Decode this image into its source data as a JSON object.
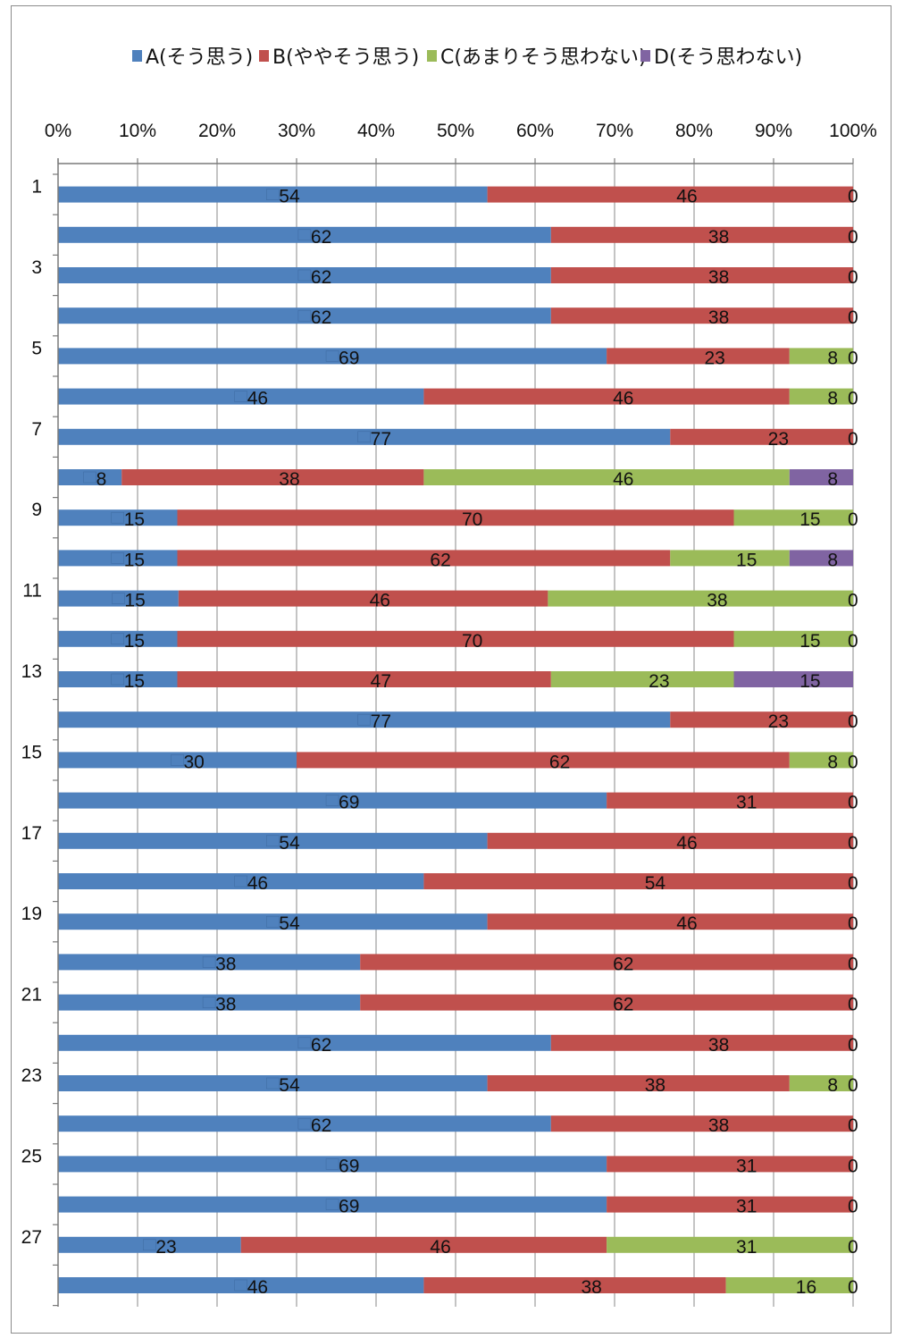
{
  "chart_data": {
    "type": "bar",
    "orientation": "horizontal",
    "stacked": "percent",
    "series": [
      {
        "name": "A(そう思う)",
        "color": "#4F81BD",
        "values": [
          54,
          62,
          62,
          62,
          69,
          46,
          77,
          8,
          15,
          15,
          15,
          15,
          15,
          77,
          30,
          69,
          54,
          46,
          54,
          38,
          38,
          62,
          54,
          62,
          69,
          69,
          23,
          46
        ]
      },
      {
        "name": "B(ややそう思う)",
        "color": "#C0504D",
        "values": [
          46,
          38,
          38,
          38,
          23,
          46,
          23,
          38,
          70,
          62,
          46,
          70,
          47,
          23,
          62,
          31,
          46,
          54,
          46,
          62,
          62,
          38,
          38,
          38,
          31,
          31,
          46,
          38
        ]
      },
      {
        "name": "C(あまりそう思わない)",
        "color": "#9BBB59",
        "values": [
          0,
          0,
          0,
          0,
          8,
          8,
          0,
          46,
          15,
          15,
          38,
          15,
          23,
          0,
          8,
          0,
          0,
          0,
          0,
          0,
          0,
          0,
          8,
          0,
          0,
          0,
          31,
          16
        ]
      },
      {
        "name": "D(そう思わない)",
        "color": "#8064A2",
        "values": [
          0,
          0,
          0,
          0,
          0,
          0,
          0,
          8,
          0,
          8,
          0,
          0,
          15,
          0,
          0,
          0,
          0,
          0,
          0,
          0,
          0,
          0,
          0,
          0,
          0,
          0,
          0,
          0
        ]
      }
    ],
    "category_labels": [
      "1",
      "",
      "3",
      "",
      "5",
      "",
      "7",
      "",
      "9",
      "",
      "11",
      "",
      "13",
      "",
      "15",
      "",
      "17",
      "",
      "19",
      "",
      "21",
      "",
      "23",
      "",
      "25",
      "",
      "27",
      ""
    ],
    "x_ticks": [
      "0%",
      "10%",
      "20%",
      "30%",
      "40%",
      "50%",
      "60%",
      "70%",
      "80%",
      "90%",
      "100%"
    ],
    "xlim": [
      0,
      100
    ],
    "legend_position": "top",
    "grid": "vertical",
    "data_labels": true
  }
}
